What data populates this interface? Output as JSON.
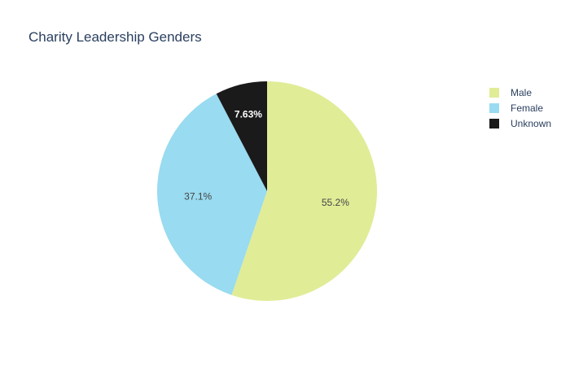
{
  "chart_data": {
    "type": "pie",
    "title": "Charity Leadership Genders",
    "labels": [
      "Male",
      "Female",
      "Unknown"
    ],
    "values": [
      55.2,
      37.1,
      7.63
    ],
    "value_labels": [
      "55.2%",
      "37.1%",
      "7.63%"
    ],
    "colors": [
      "#e1ec97",
      "#99dbf0",
      "#1a1a1a"
    ],
    "label_colors": [
      "#444444",
      "#444444",
      "#ffffff"
    ],
    "start_angle": "12 o'clock",
    "direction": "clockwise",
    "legend_position": "top-right",
    "background": "#ffffff"
  }
}
